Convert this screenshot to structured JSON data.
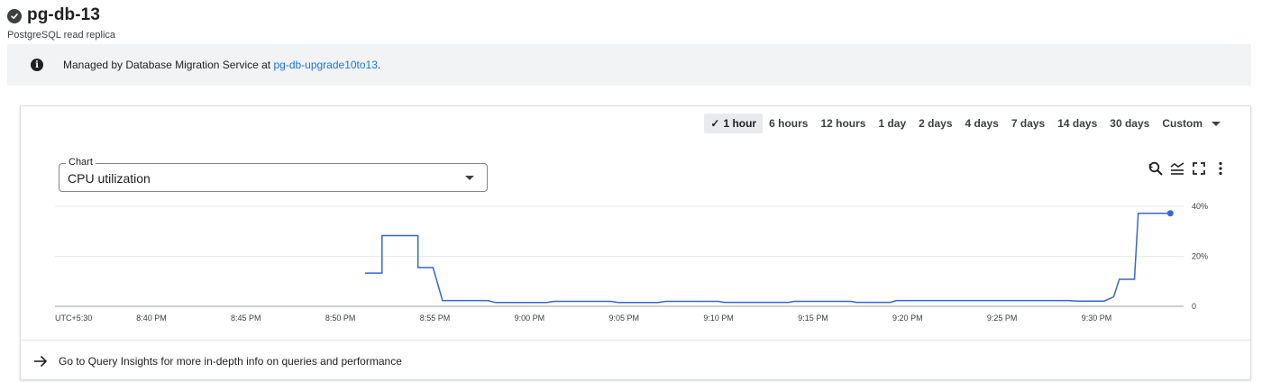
{
  "header": {
    "title": "pg-db-13",
    "subtitle": "PostgreSQL read replica",
    "status_icon": "check-circle-icon"
  },
  "banner": {
    "icon": "info-icon",
    "text": "Managed by Database Migration Service at ",
    "link_text": "pg-db-upgrade10to13",
    "suffix": "."
  },
  "time_ranges": {
    "options": [
      "1 hour",
      "6 hours",
      "12 hours",
      "1 day",
      "2 days",
      "4 days",
      "7 days",
      "14 days",
      "30 days"
    ],
    "selected": "1 hour",
    "custom_label": "Custom"
  },
  "chart_selector": {
    "label": "Chart",
    "value": "CPU utilization"
  },
  "tools": [
    "reset-zoom-icon",
    "legend-toggle-icon",
    "fullscreen-icon",
    "more-vert-icon"
  ],
  "chart_data": {
    "type": "line",
    "series_color": "#3367d6",
    "ylim": [
      0,
      40
    ],
    "y_ticks": [
      {
        "v": 0,
        "label": "0"
      },
      {
        "v": 20,
        "label": "20%"
      },
      {
        "v": 40,
        "label": "40%"
      }
    ],
    "x_ticks": [
      "UTC+5:30",
      "8:40 PM",
      "8:45 PM",
      "8:50 PM",
      "8:55 PM",
      "9:00 PM",
      "9:05 PM",
      "9:10 PM",
      "9:15 PM",
      "9:20 PM",
      "9:25 PM",
      "9:30 PM"
    ],
    "x_tick_minutes": [
      null,
      0,
      5,
      10,
      15,
      20,
      25,
      30,
      35,
      40,
      45,
      50
    ],
    "x_start_minute": -5.1,
    "x_end_minute": 54.6,
    "points": [
      [
        11.3,
        13.3
      ],
      [
        12.2,
        13.3
      ],
      [
        12.2,
        28.3
      ],
      [
        14.1,
        28.3
      ],
      [
        14.1,
        15.5
      ],
      [
        14.9,
        15.5
      ],
      [
        15.4,
        2.3
      ],
      [
        17.8,
        2.3
      ],
      [
        18.2,
        1.5
      ],
      [
        20.9,
        1.5
      ],
      [
        21.3,
        2.0
      ],
      [
        24.3,
        2.0
      ],
      [
        24.7,
        1.5
      ],
      [
        26.8,
        1.5
      ],
      [
        27.2,
        2.0
      ],
      [
        30.0,
        2.0
      ],
      [
        30.3,
        1.6
      ],
      [
        33.7,
        1.6
      ],
      [
        34.0,
        2.0
      ],
      [
        37.0,
        2.0
      ],
      [
        37.3,
        1.6
      ],
      [
        39.1,
        1.6
      ],
      [
        39.4,
        2.3
      ],
      [
        48.5,
        2.3
      ],
      [
        49.0,
        2.1
      ],
      [
        50.4,
        2.1
      ],
      [
        50.9,
        3.8
      ],
      [
        51.2,
        10.8
      ],
      [
        52.0,
        10.8
      ],
      [
        52.2,
        37.2
      ],
      [
        53.9,
        37.2
      ]
    ],
    "end_marker": true
  },
  "footer": {
    "icon": "arrow-right-icon",
    "text": "Go to Query Insights for more in-depth info on queries and performance"
  }
}
